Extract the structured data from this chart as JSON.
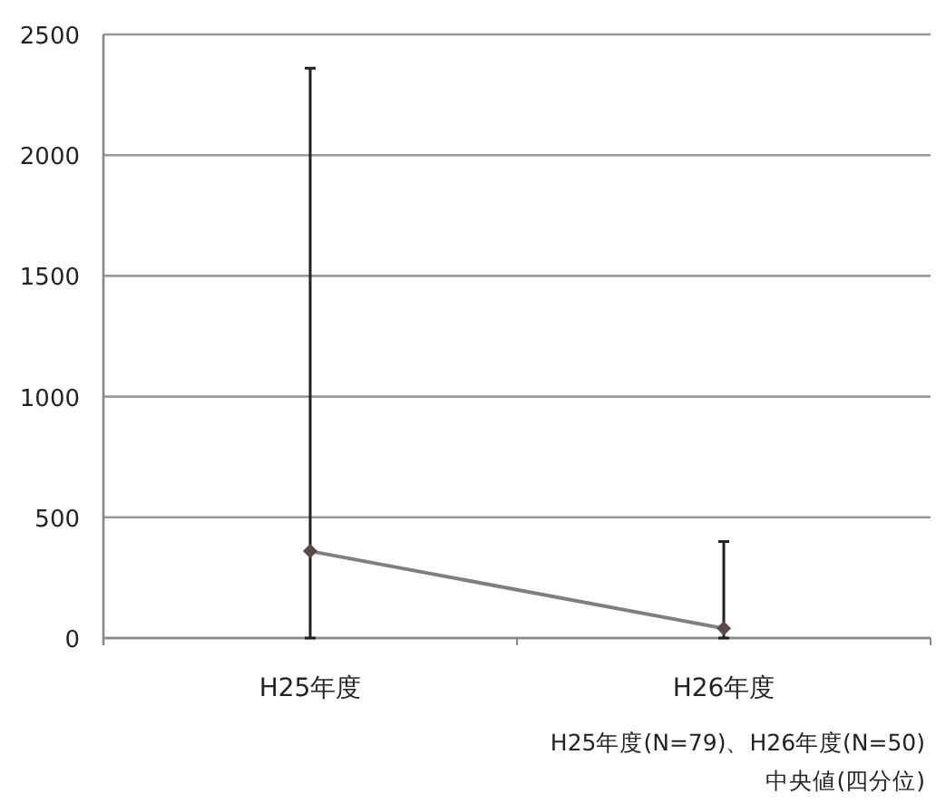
{
  "chart_data": {
    "type": "line",
    "categories": [
      "H25年度",
      "H26年度"
    ],
    "values": [
      360,
      40
    ],
    "errors": [
      [
        0,
        2360
      ],
      [
        0,
        400
      ]
    ],
    "color": "#7f7f7f",
    "ylim": [
      0,
      2500
    ],
    "yticks": [
      0,
      500,
      1000,
      1500,
      2000,
      2500
    ],
    "grid": "y",
    "marker": "diamond",
    "line_style": "solid",
    "annotations": [
      "H25年度(N=79)、H26年度(N=50)",
      "中央値(四分位)"
    ]
  }
}
